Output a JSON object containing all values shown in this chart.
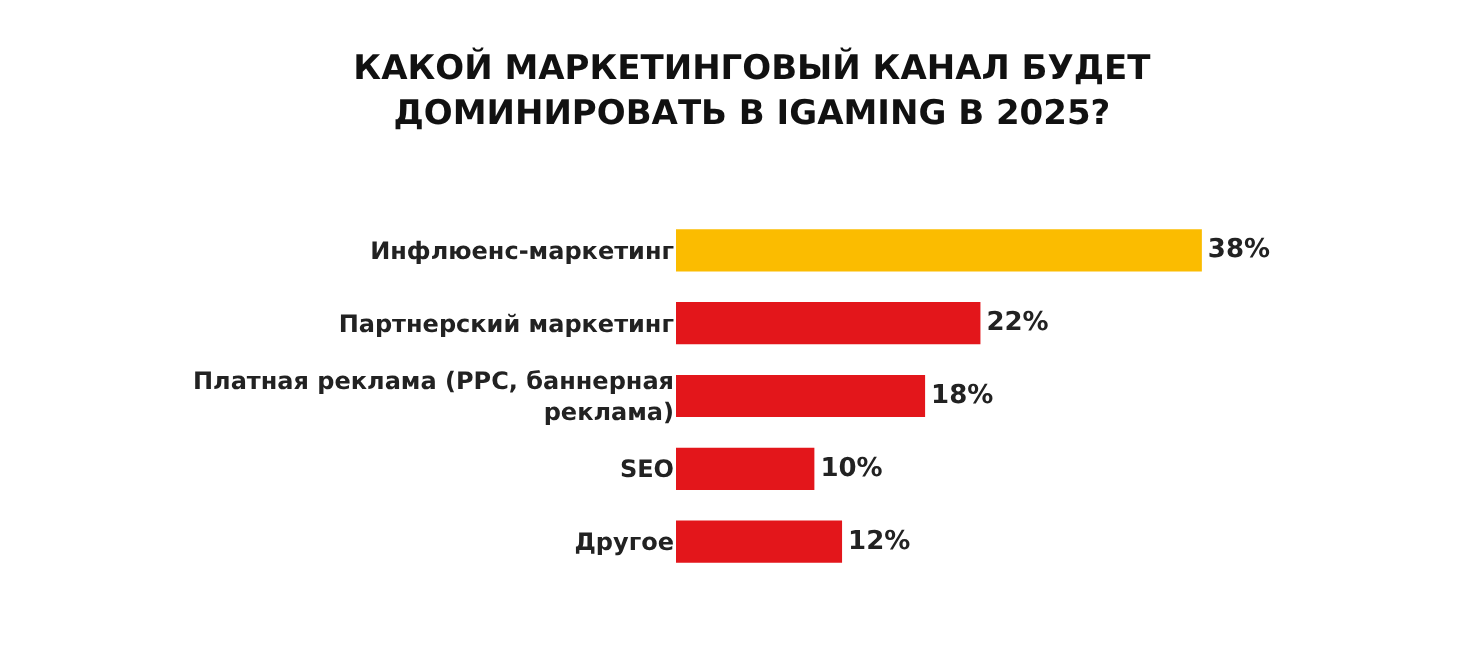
{
  "chart_data": {
    "type": "bar",
    "orientation": "horizontal",
    "title": "КАКОЙ МАРКЕТИНГОВЫЙ КАНАЛ БУДЕТ ДОМИНИРОВАТЬ В IGAMING В 2025?",
    "categories": [
      "Инфлюенс-маркетинг",
      "Партнерский маркетинг",
      "Платная реклама (PPC, баннерная реклама)",
      "SEO",
      "Другое"
    ],
    "values": [
      38,
      22,
      18,
      10,
      12
    ],
    "value_labels": [
      "38%",
      "22%",
      "18%",
      "10%",
      "12%"
    ],
    "colors": [
      "#fbbc00",
      "#e3161b",
      "#e3161b",
      "#e3161b",
      "#e3161b"
    ]
  }
}
